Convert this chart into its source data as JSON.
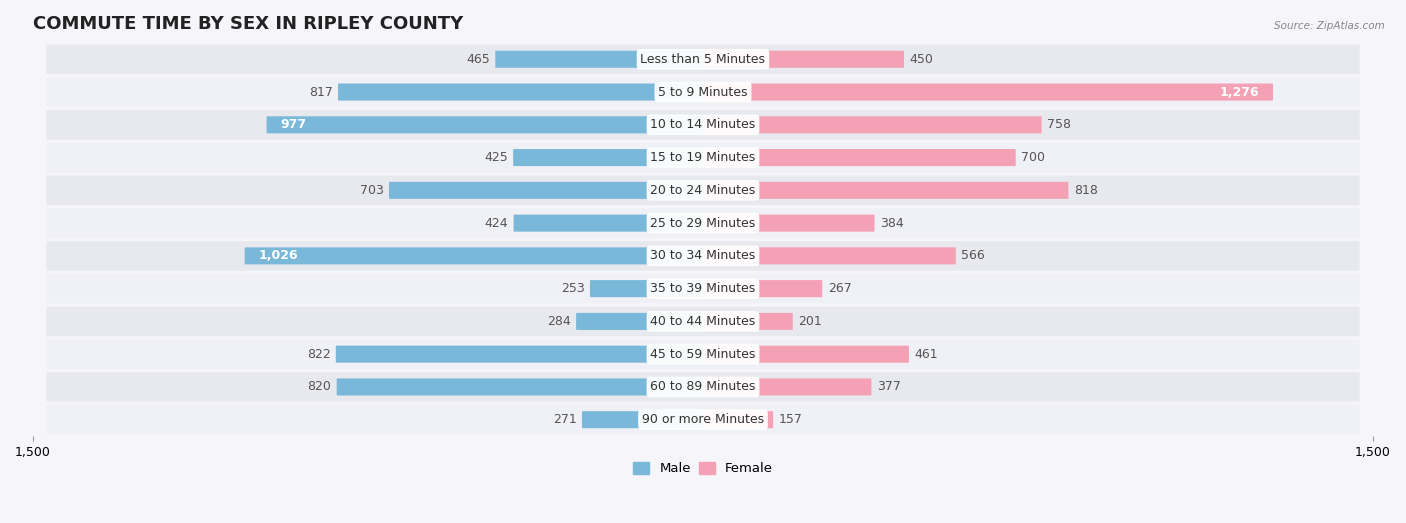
{
  "title": "COMMUTE TIME BY SEX IN RIPLEY COUNTY",
  "source": "Source: ZipAtlas.com",
  "categories": [
    "Less than 5 Minutes",
    "5 to 9 Minutes",
    "10 to 14 Minutes",
    "15 to 19 Minutes",
    "20 to 24 Minutes",
    "25 to 29 Minutes",
    "30 to 34 Minutes",
    "35 to 39 Minutes",
    "40 to 44 Minutes",
    "45 to 59 Minutes",
    "60 to 89 Minutes",
    "90 or more Minutes"
  ],
  "male_values": [
    465,
    817,
    977,
    425,
    703,
    424,
    1026,
    253,
    284,
    822,
    820,
    271
  ],
  "female_values": [
    450,
    1276,
    758,
    700,
    818,
    384,
    566,
    267,
    201,
    461,
    377,
    157
  ],
  "male_color": "#7ab8d9",
  "female_color": "#f4a0b5",
  "male_label": "Male",
  "female_label": "Female",
  "male_label_color_inside": "#ffffff",
  "male_label_color_outside": "#555555",
  "female_label_color_inside": "#ffffff",
  "female_label_color_outside": "#555555",
  "xlim": 1500,
  "bar_height": 0.52,
  "row_bg_color": "#e8e8ef",
  "row_bg_color2": "#f0f0f7",
  "fig_bg_color": "#f5f5fa",
  "title_fontsize": 13,
  "label_fontsize": 9,
  "tick_fontsize": 9,
  "category_fontsize": 9,
  "inside_label_threshold_male": 900,
  "inside_label_threshold_female": 1200
}
